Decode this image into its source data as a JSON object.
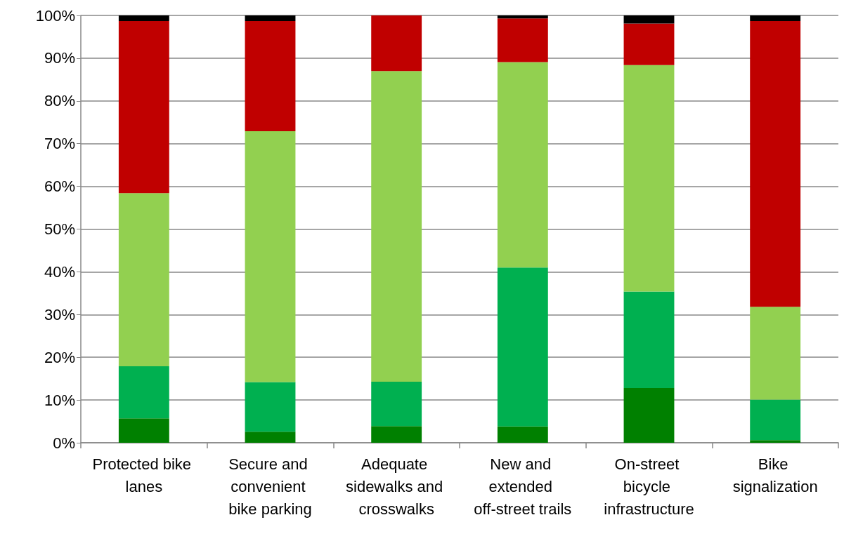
{
  "chart_data": {
    "type": "bar",
    "stacked": true,
    "categories": [
      "Protected bike lanes",
      "Secure and convenient bike parking",
      "Adequate sidewalks and crosswalks",
      "New and extended off-street trails",
      "On-street bicycle infrastructure",
      "Bike signalization"
    ],
    "series": [
      {
        "color": "#008000",
        "values": [
          5.7,
          2.6,
          3.9,
          3.8,
          12.8,
          0.6
        ]
      },
      {
        "color": "#00b050",
        "values": [
          12.2,
          11.6,
          10.4,
          37.2,
          22.6,
          9.5
        ]
      },
      {
        "color": "#92d050",
        "values": [
          40.5,
          58.7,
          72.7,
          48.1,
          53.0,
          21.7
        ]
      },
      {
        "color": "#c00000",
        "values": [
          40.3,
          25.8,
          13.0,
          10.2,
          9.7,
          66.9
        ]
      },
      {
        "color": "#000000",
        "values": [
          1.3,
          1.3,
          0,
          0.7,
          1.9,
          1.3
        ]
      }
    ],
    "ylim": [
      0,
      100
    ],
    "yticks": [
      {
        "value": 0,
        "label": "0%"
      },
      {
        "value": 10,
        "label": "10%"
      },
      {
        "value": 20,
        "label": "20%"
      },
      {
        "value": 30,
        "label": "30%"
      },
      {
        "value": 40,
        "label": "40%"
      },
      {
        "value": 50,
        "label": "50%"
      },
      {
        "value": 60,
        "label": "60%"
      },
      {
        "value": 70,
        "label": "70%"
      },
      {
        "value": 80,
        "label": "80%"
      },
      {
        "value": 90,
        "label": "90%"
      },
      {
        "value": 100,
        "label": "100%"
      }
    ],
    "grid": "y"
  }
}
